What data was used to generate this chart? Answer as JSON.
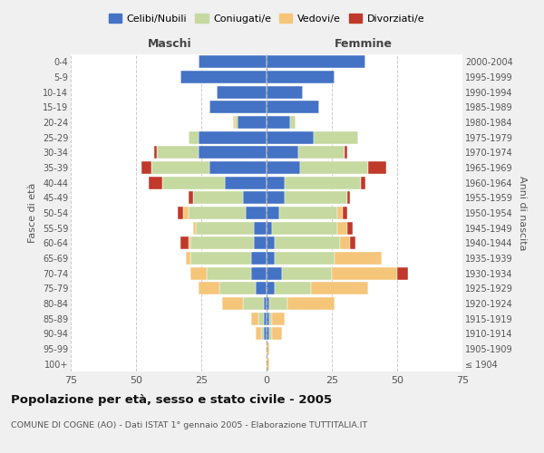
{
  "age_groups": [
    "100+",
    "95-99",
    "90-94",
    "85-89",
    "80-84",
    "75-79",
    "70-74",
    "65-69",
    "60-64",
    "55-59",
    "50-54",
    "45-49",
    "40-44",
    "35-39",
    "30-34",
    "25-29",
    "20-24",
    "15-19",
    "10-14",
    "5-9",
    "0-4"
  ],
  "birth_years": [
    "≤ 1904",
    "1905-1909",
    "1910-1914",
    "1915-1919",
    "1920-1924",
    "1925-1929",
    "1930-1934",
    "1935-1939",
    "1940-1944",
    "1945-1949",
    "1950-1954",
    "1955-1959",
    "1960-1964",
    "1965-1969",
    "1970-1974",
    "1975-1979",
    "1980-1984",
    "1985-1989",
    "1990-1994",
    "1995-1999",
    "2000-2004"
  ],
  "colors": {
    "celibi": "#4472C4",
    "coniugati": "#c5d9a0",
    "vedovi": "#f5c57a",
    "divorziati": "#c0392b"
  },
  "maschi": {
    "celibi": [
      0,
      0,
      1,
      1,
      1,
      4,
      6,
      6,
      5,
      5,
      8,
      9,
      16,
      22,
      26,
      26,
      11,
      22,
      19,
      33,
      26
    ],
    "coniugati": [
      0,
      0,
      1,
      2,
      8,
      14,
      17,
      23,
      24,
      22,
      22,
      19,
      24,
      22,
      16,
      4,
      1,
      0,
      0,
      0,
      0
    ],
    "vedovi": [
      0,
      0,
      2,
      3,
      8,
      8,
      6,
      2,
      1,
      1,
      2,
      0,
      0,
      0,
      0,
      0,
      1,
      0,
      0,
      0,
      0
    ],
    "divorziati": [
      0,
      0,
      0,
      0,
      0,
      0,
      0,
      0,
      3,
      0,
      2,
      2,
      5,
      4,
      1,
      0,
      0,
      0,
      0,
      0,
      0
    ]
  },
  "femmine": {
    "celibi": [
      0,
      0,
      1,
      1,
      1,
      3,
      6,
      3,
      3,
      2,
      5,
      7,
      7,
      13,
      12,
      18,
      9,
      20,
      14,
      26,
      38
    ],
    "coniugati": [
      0,
      0,
      1,
      1,
      7,
      14,
      19,
      23,
      25,
      25,
      22,
      24,
      29,
      26,
      18,
      17,
      2,
      0,
      0,
      0,
      0
    ],
    "vedovi": [
      1,
      1,
      4,
      5,
      18,
      22,
      25,
      18,
      4,
      4,
      2,
      0,
      0,
      0,
      0,
      0,
      0,
      0,
      0,
      0,
      0
    ],
    "divorziati": [
      0,
      0,
      0,
      0,
      0,
      0,
      4,
      0,
      2,
      2,
      2,
      1,
      2,
      7,
      1,
      0,
      0,
      0,
      0,
      0,
      0
    ]
  },
  "title": "Popolazione per età, sesso e stato civile - 2005",
  "subtitle": "COMUNE DI COGNE (AO) - Dati ISTAT 1° gennaio 2005 - Elaborazione TUTTITALIA.IT",
  "xlabel_left": "Maschi",
  "xlabel_right": "Femmine",
  "ylabel_left": "Fasce di età",
  "ylabel_right": "Anni di nascita",
  "xlim": 75,
  "legend_labels": [
    "Celibi/Nubili",
    "Coniugati/e",
    "Vedovi/e",
    "Divorziati/e"
  ],
  "bg_color": "#f0f0f0",
  "plot_bg": "#ffffff",
  "grid_color": "#cccccc"
}
